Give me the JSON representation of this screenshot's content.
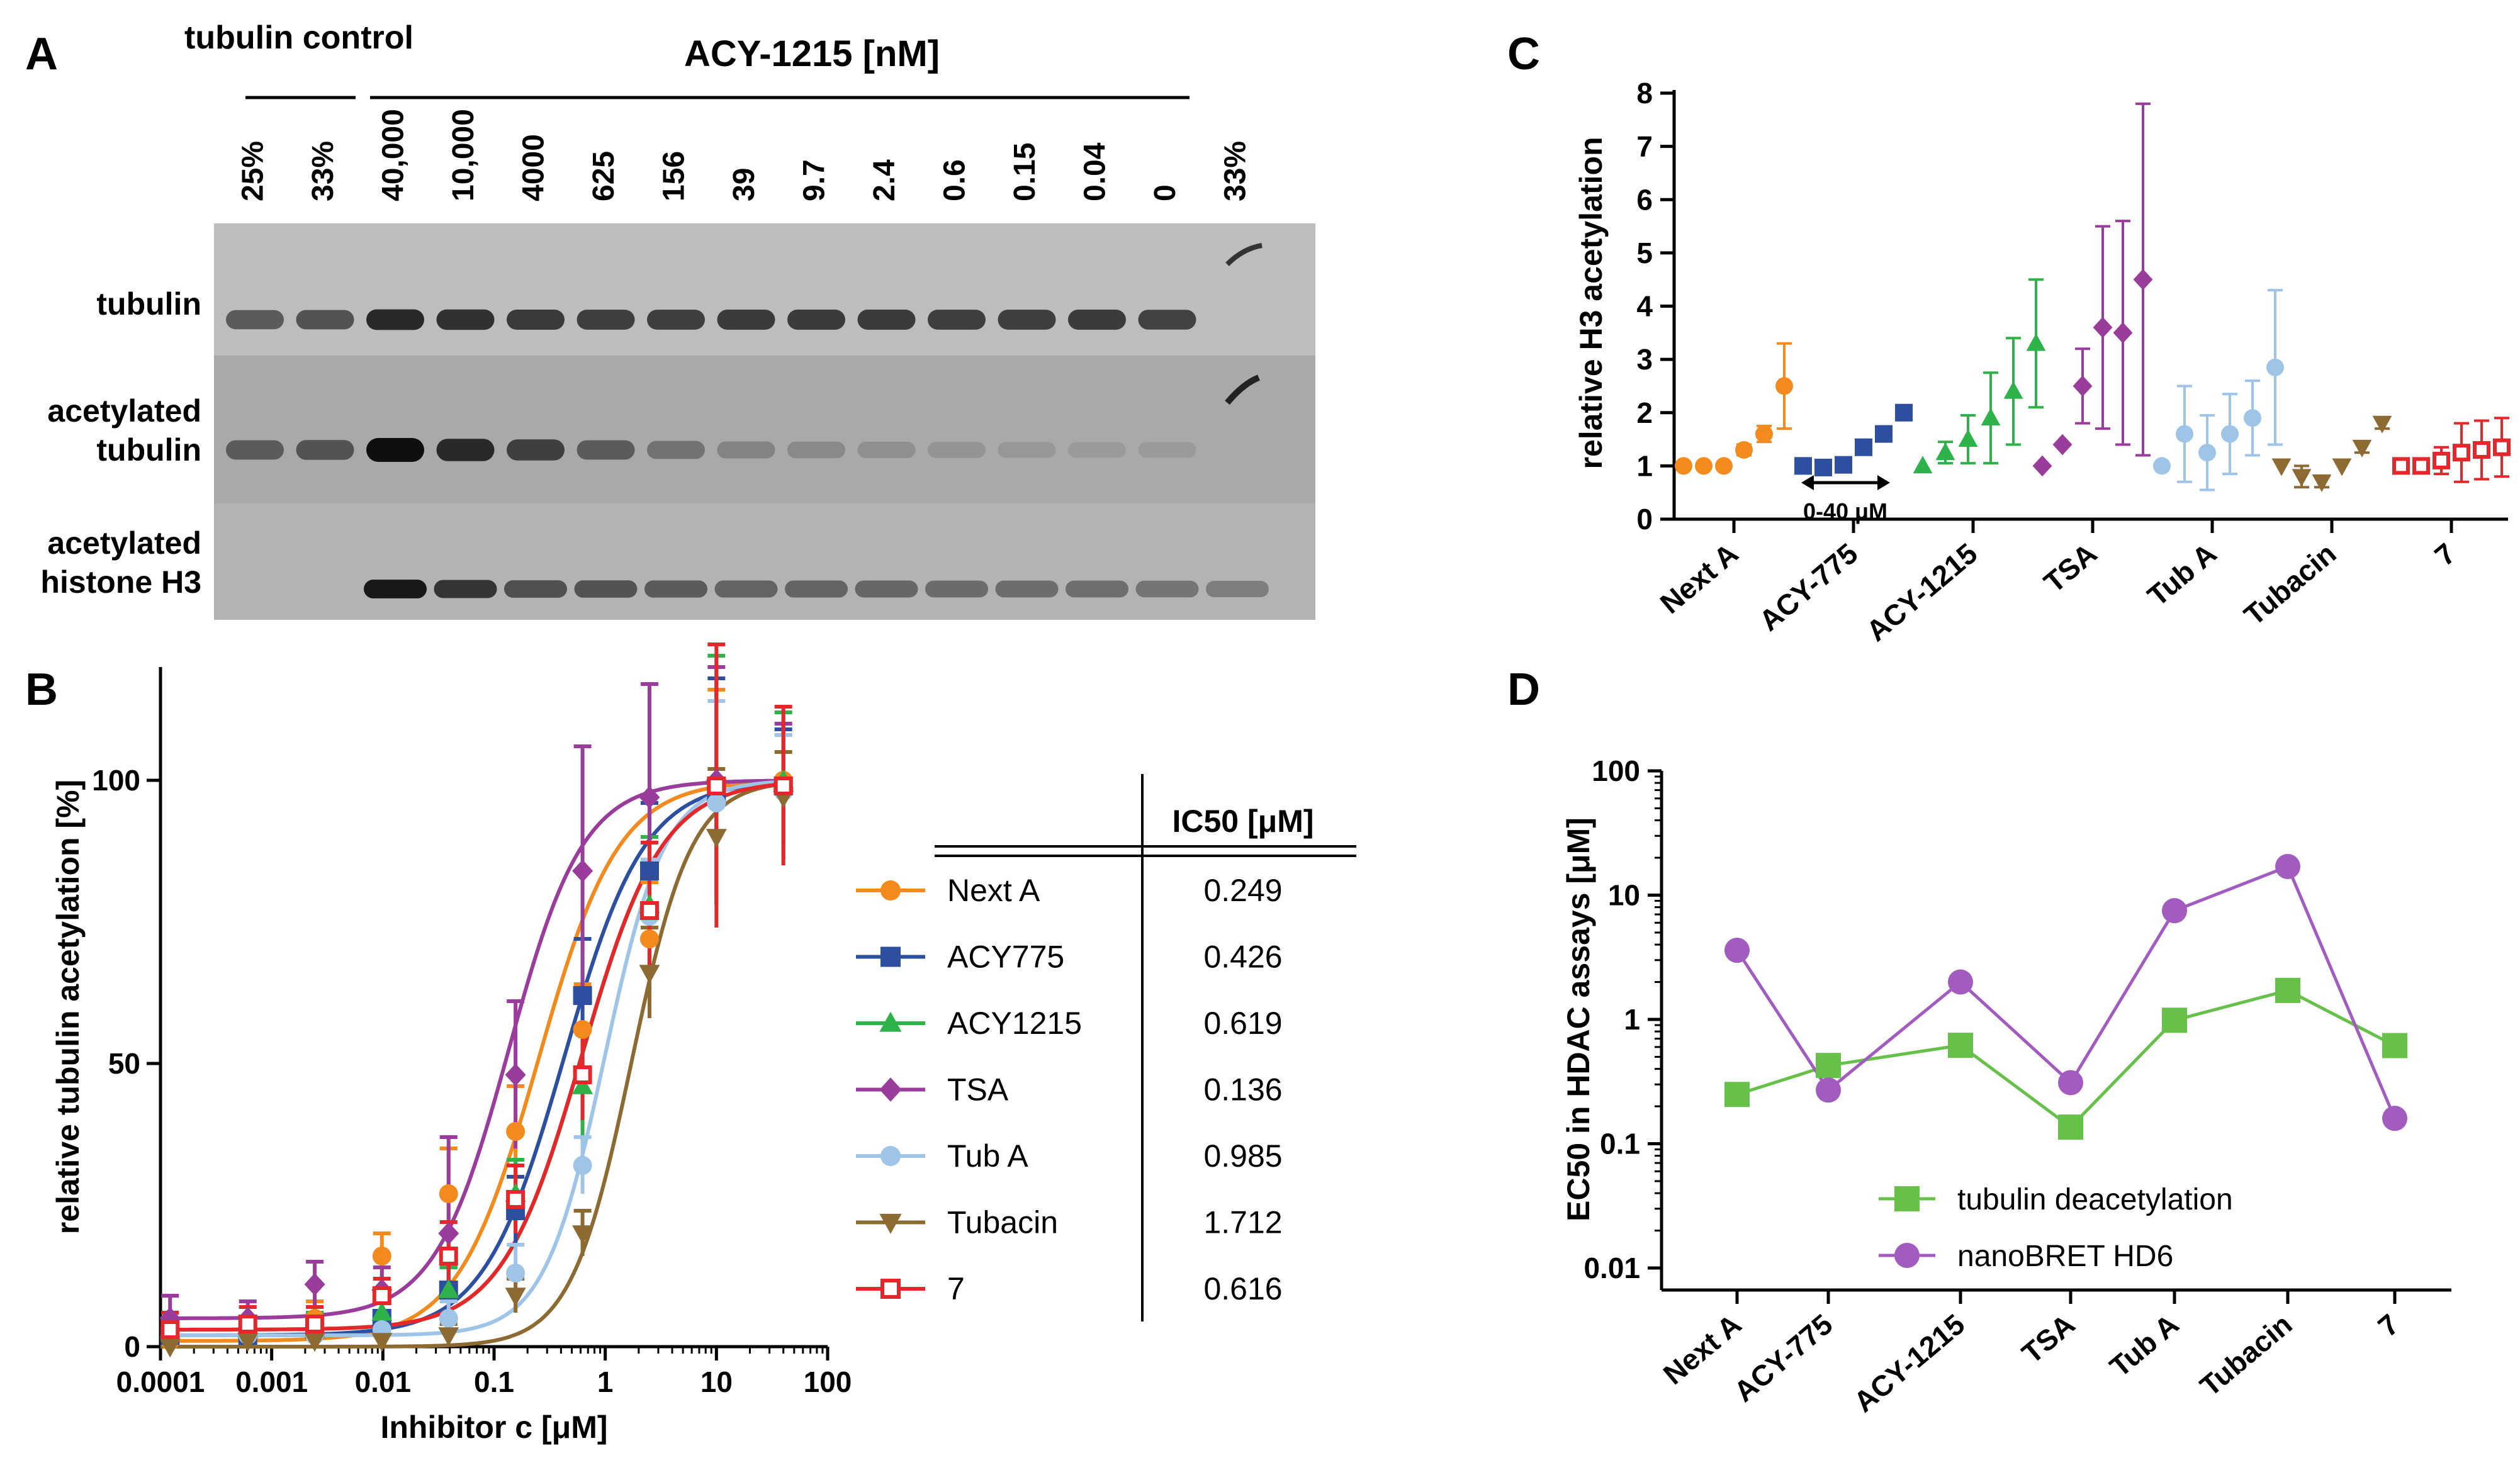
{
  "colors": {
    "nextA": "#f28a1e",
    "acy775": "#2c4fa0",
    "acy1215": "#2fb24a",
    "tsa": "#9a3c9c",
    "tubA": "#9ec5e8",
    "tubacin": "#8c6a32",
    "c7": "#e5262b",
    "deacetyl": "#66c04a",
    "bret": "#a25cbf"
  },
  "panel_a": {
    "label": "A",
    "group_control": "tubulin control",
    "group_acy": "ACY-1215 [nM]",
    "lanes": [
      "25%",
      "33%",
      "40,000",
      "10,000",
      "4000",
      "625",
      "156",
      "39",
      "9.7",
      "2.4",
      "0.6",
      "0.15",
      "0.04",
      "0",
      "33%"
    ],
    "rows": [
      "tubulin",
      "acetylated tubulin",
      "acetylated histone H3"
    ],
    "tubulin_intensity": [
      0.55,
      0.6,
      0.85,
      0.8,
      0.75,
      0.72,
      0.72,
      0.74,
      0.74,
      0.74,
      0.72,
      0.72,
      0.74,
      0.7,
      0.0
    ],
    "acetyl_tubulin_intensity": [
      0.55,
      0.6,
      1.0,
      0.85,
      0.72,
      0.55,
      0.42,
      0.32,
      0.28,
      0.25,
      0.22,
      0.2,
      0.18,
      0.18,
      0.0
    ],
    "h3_intensity": [
      0.0,
      0.0,
      0.95,
      0.78,
      0.62,
      0.6,
      0.55,
      0.5,
      0.5,
      0.48,
      0.46,
      0.45,
      0.44,
      0.4,
      0.35
    ]
  },
  "chart_data": [
    {
      "panel": "B",
      "type": "scatter",
      "xscale": "log",
      "xlabel": "Inhibitor c [μM]",
      "ylabel": "relative tubulin acetylation [%]",
      "xlim": [
        0.0001,
        100
      ],
      "ylim": [
        0,
        120
      ],
      "xticks": [
        "0.0001",
        "0.001",
        "0.01",
        "0.1",
        "1",
        "10",
        "100"
      ],
      "yticks": [
        "0",
        "50",
        "100"
      ],
      "x": [
        0.000122,
        0.00061,
        0.00244,
        0.0098,
        0.039,
        0.156,
        0.625,
        2.5,
        10,
        40
      ],
      "table_header": "IC50 [μM]",
      "series": [
        {
          "name": "Next A",
          "ic50": "0.249",
          "color": "nextA",
          "marker": "circle",
          "values": [
            1,
            4,
            5,
            16,
            27,
            38,
            56,
            72,
            98,
            100
          ],
          "err": [
            4,
            3,
            3,
            4,
            8,
            8,
            8,
            10,
            18,
            8
          ]
        },
        {
          "name": "ACY775",
          "ic50": "0.426",
          "color": "acy775",
          "marker": "square",
          "values": [
            2,
            2,
            3,
            5,
            10,
            24,
            62,
            84,
            98,
            99
          ],
          "err": [
            3,
            2,
            3,
            3,
            4,
            6,
            10,
            12,
            20,
            10
          ]
        },
        {
          "name": "ACY1215",
          "ic50": "0.619",
          "color": "acy1215",
          "marker": "triangle",
          "values": [
            3,
            3,
            3,
            6,
            10,
            27,
            46,
            78,
            100,
            100
          ],
          "err": [
            3,
            2,
            3,
            3,
            4,
            6,
            10,
            12,
            22,
            12
          ]
        },
        {
          "name": "TSA",
          "ic50": "0.136",
          "color": "tsa",
          "marker": "diamond",
          "values": [
            5,
            5,
            11,
            10,
            20,
            48,
            84,
            97,
            100,
            98
          ],
          "err": [
            4,
            3,
            4,
            4,
            17,
            13,
            22,
            20,
            20,
            12
          ]
        },
        {
          "name": "Tub A",
          "ic50": "0.985",
          "color": "tubA",
          "marker": "circle",
          "values": [
            2,
            2,
            2,
            3,
            5,
            13,
            32,
            76,
            96,
            98
          ],
          "err": [
            3,
            2,
            2,
            2,
            3,
            5,
            5,
            10,
            18,
            10
          ]
        },
        {
          "name": "Tubacin",
          "ic50": "1.712",
          "color": "tubacin",
          "marker": "triangledown",
          "values": [
            0,
            1,
            1,
            1,
            2,
            9,
            20,
            66,
            90,
            97
          ],
          "err": [
            2,
            2,
            2,
            2,
            2,
            3,
            4,
            8,
            12,
            8
          ]
        },
        {
          "name": "7",
          "ic50": "0.616",
          "color": "c7",
          "marker": "opensquare",
          "values": [
            3,
            4,
            4,
            9,
            16,
            26,
            48,
            77,
            99,
            99
          ],
          "err": [
            3,
            3,
            3,
            3,
            6,
            6,
            8,
            12,
            25,
            14
          ]
        }
      ]
    },
    {
      "panel": "C",
      "type": "scatter",
      "ylabel": "relative H3 acetylation",
      "ylim": [
        0,
        8
      ],
      "yticks": [
        "0",
        "1",
        "2",
        "3",
        "4",
        "5",
        "6",
        "7",
        "8"
      ],
      "annotation": "0-40 μM",
      "categories": [
        "Next A",
        "ACY-775",
        "ACY-1215",
        "TSA",
        "Tub A",
        "Tubacin",
        "7"
      ],
      "series": [
        {
          "name": "Next A",
          "color": "nextA",
          "marker": "circle",
          "values": [
            1.0,
            1.0,
            1.0,
            1.3,
            1.6,
            2.5
          ],
          "err": [
            0,
            0,
            0,
            0.1,
            0.15,
            0.8
          ]
        },
        {
          "name": "ACY-775",
          "color": "acy775",
          "marker": "square",
          "values": [
            1.0,
            0.97,
            1.02,
            1.35,
            1.6,
            2.0
          ],
          "err": [
            0,
            0,
            0,
            0,
            0,
            0
          ]
        },
        {
          "name": "ACY-1215",
          "color": "acy1215",
          "marker": "triangle",
          "values": [
            1.0,
            1.25,
            1.5,
            1.9,
            2.4,
            3.3
          ],
          "err": [
            0,
            0.2,
            0.45,
            0.85,
            1.0,
            1.2
          ]
        },
        {
          "name": "TSA",
          "color": "tsa",
          "marker": "diamond",
          "values": [
            1.0,
            1.4,
            2.5,
            3.6,
            3.5,
            4.5
          ],
          "err": [
            0,
            0,
            0.7,
            1.9,
            2.1,
            3.3
          ]
        },
        {
          "name": "Tub A",
          "color": "tubA",
          "marker": "circle",
          "values": [
            1.0,
            1.6,
            1.25,
            1.6,
            1.9,
            2.85
          ],
          "err": [
            0,
            0.9,
            0.7,
            0.75,
            0.7,
            1.45
          ]
        },
        {
          "name": "Tubacin",
          "color": "tubacin",
          "marker": "triangledown",
          "values": [
            1.0,
            0.8,
            0.7,
            1.0,
            1.35,
            1.8
          ],
          "err": [
            0,
            0.2,
            0.1,
            0,
            0.1,
            0.1
          ]
        },
        {
          "name": "7",
          "color": "c7",
          "marker": "opensquare",
          "values": [
            1.0,
            1.0,
            1.1,
            1.25,
            1.3,
            1.35
          ],
          "err": [
            0,
            0,
            0.25,
            0.55,
            0.55,
            0.55
          ]
        }
      ]
    },
    {
      "panel": "D",
      "type": "line",
      "yscale": "log",
      "ylabel": "EC50 in HDAC assays [μM]",
      "ylim": [
        0.01,
        100
      ],
      "yticks": [
        "0.01",
        "0.1",
        "1",
        "10",
        "100"
      ],
      "categories": [
        "Next A",
        "ACY-775",
        "ACY-1215",
        "TSA",
        "Tub A",
        "Tubacin",
        "7"
      ],
      "series": [
        {
          "name": "tubulin deacetylation",
          "color": "deacetyl",
          "marker": "square",
          "values": [
            0.249,
            0.426,
            0.619,
            0.136,
            0.985,
            1.712,
            0.616
          ]
        },
        {
          "name": "nanoBRET HD6",
          "color": "bret",
          "marker": "circle",
          "values": [
            3.6,
            0.27,
            2.0,
            0.31,
            7.5,
            17.0,
            0.16
          ]
        }
      ]
    }
  ]
}
